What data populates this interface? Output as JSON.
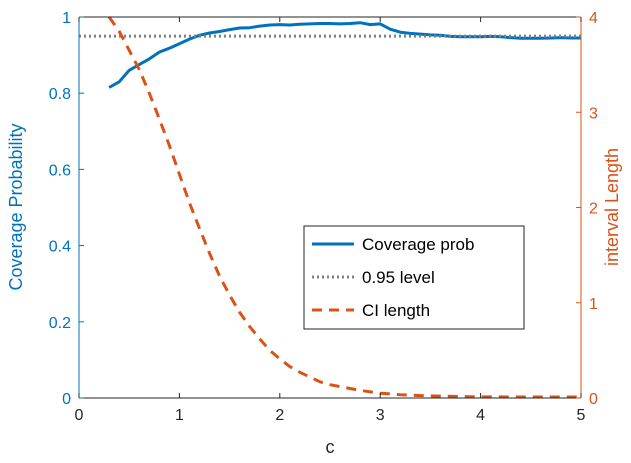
{
  "chart_data": {
    "type": "line",
    "xlabel": "c",
    "ylabel_left": "Coverage Probability",
    "ylabel_right": "interval Length",
    "xlim": [
      0,
      5
    ],
    "ylim_left": [
      0,
      1
    ],
    "ylim_right": [
      0,
      4
    ],
    "x_ticks": [
      "0",
      "1",
      "2",
      "3",
      "4",
      "5"
    ],
    "y_ticks_left": [
      "0",
      "0.2",
      "0.4",
      "0.6",
      "0.8",
      "1"
    ],
    "y_ticks_right": [
      "0",
      "1",
      "2",
      "3",
      "4"
    ],
    "grid": false,
    "legend_position": "center-right",
    "colors": {
      "coverage": "#0072BD",
      "level": "#808080",
      "ci_length": "#D95319",
      "left_axis": "#0072BD",
      "right_axis": "#D95319"
    },
    "series": [
      {
        "name": "Coverage prob",
        "axis": "left",
        "style": "solid",
        "x": [
          0.3,
          0.4,
          0.5,
          0.6,
          0.7,
          0.8,
          0.9,
          1.0,
          1.1,
          1.2,
          1.3,
          1.4,
          1.5,
          1.6,
          1.7,
          1.8,
          1.9,
          2.0,
          2.1,
          2.2,
          2.3,
          2.4,
          2.5,
          2.6,
          2.7,
          2.8,
          2.9,
          3.0,
          3.1,
          3.2,
          3.3,
          3.4,
          3.5,
          3.6,
          3.7,
          3.8,
          3.9,
          4.0,
          4.1,
          4.2,
          4.3,
          4.4,
          4.5,
          4.6,
          4.7,
          4.8,
          4.9,
          5.0
        ],
        "y": [
          0.815,
          0.83,
          0.86,
          0.875,
          0.89,
          0.908,
          0.918,
          0.93,
          0.942,
          0.952,
          0.958,
          0.962,
          0.967,
          0.971,
          0.972,
          0.976,
          0.979,
          0.98,
          0.979,
          0.981,
          0.982,
          0.983,
          0.983,
          0.982,
          0.983,
          0.985,
          0.98,
          0.982,
          0.968,
          0.96,
          0.957,
          0.955,
          0.953,
          0.952,
          0.949,
          0.948,
          0.948,
          0.948,
          0.949,
          0.948,
          0.946,
          0.944,
          0.944,
          0.944,
          0.945,
          0.946,
          0.945,
          0.945
        ]
      },
      {
        "name": "0.95 level",
        "axis": "left",
        "style": "dotted",
        "x": [
          0,
          5
        ],
        "y": [
          0.95,
          0.95
        ]
      },
      {
        "name": "CI length",
        "axis": "right",
        "style": "dashed",
        "x": [
          0.3,
          0.4,
          0.5,
          0.6,
          0.7,
          0.8,
          0.9,
          1.0,
          1.1,
          1.2,
          1.3,
          1.4,
          1.5,
          1.6,
          1.7,
          1.8,
          1.9,
          2.0,
          2.1,
          2.2,
          2.3,
          2.4,
          2.5,
          2.6,
          2.7,
          2.8,
          2.9,
          3.0,
          3.2,
          3.4,
          3.6,
          3.8,
          4.0,
          4.5,
          5.0
        ],
        "y": [
          4.0,
          3.85,
          3.65,
          3.45,
          3.2,
          2.93,
          2.65,
          2.35,
          2.05,
          1.78,
          1.52,
          1.28,
          1.08,
          0.9,
          0.75,
          0.62,
          0.5,
          0.41,
          0.33,
          0.27,
          0.22,
          0.17,
          0.14,
          0.12,
          0.1,
          0.08,
          0.065,
          0.05,
          0.035,
          0.025,
          0.02,
          0.015,
          0.012,
          0.01,
          0.01
        ]
      }
    ]
  }
}
